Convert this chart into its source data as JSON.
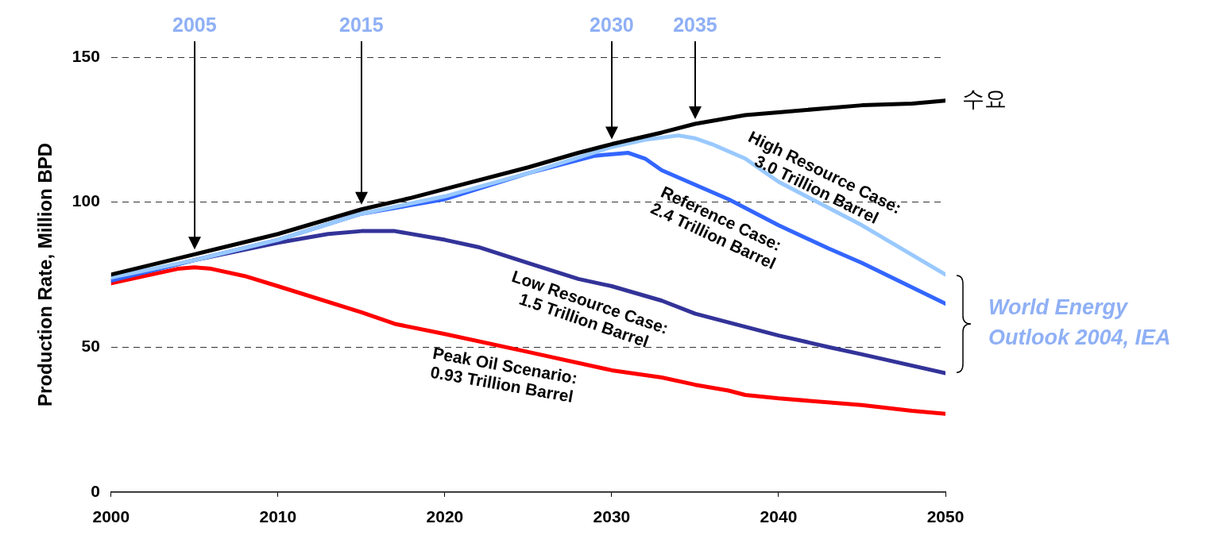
{
  "chart_data": {
    "type": "line",
    "ylabel": "Production Rate, Million BPD",
    "xlim": [
      2000,
      2050
    ],
    "xticks": [
      2000,
      2010,
      2020,
      2030,
      2040,
      2050
    ],
    "ylim": [
      0,
      150
    ],
    "yticks": [
      0,
      50,
      100,
      150
    ],
    "grid": "y",
    "legend": false,
    "marker": "none",
    "line_style": "solid",
    "series": [
      {
        "name": "수요",
        "color": "#000000",
        "x": [
          2000,
          2005,
          2010,
          2015,
          2018,
          2020,
          2025,
          2028,
          2030,
          2033,
          2035,
          2038,
          2040,
          2045,
          2048,
          2050
        ],
        "values": [
          75,
          82,
          89,
          97.5,
          101.5,
          104.5,
          112,
          117,
          120,
          124,
          127,
          130,
          131,
          133.4,
          134,
          135
        ]
      },
      {
        "name": "High Resource Case:\n3.0 Trillion Barrel",
        "color": "#99c9ff",
        "x": [
          2000,
          2005,
          2010,
          2015,
          2020,
          2025,
          2030,
          2032,
          2034,
          2035,
          2036,
          2038,
          2040,
          2045,
          2050
        ],
        "values": [
          74,
          80,
          87,
          96,
          102,
          110,
          119,
          121.5,
          123,
          122,
          120,
          115,
          107,
          92,
          75
        ]
      },
      {
        "name": "Reference Case:\n2.4 Trillion Barrel",
        "color": "#3366ff",
        "x": [
          2000,
          2005,
          2010,
          2015,
          2020,
          2025,
          2029,
          2031,
          2032,
          2033,
          2035,
          2037,
          2040,
          2043,
          2045,
          2050
        ],
        "values": [
          73,
          80,
          87,
          96,
          101,
          110,
          116,
          117,
          115,
          111,
          106,
          101,
          92,
          84,
          79,
          65
        ]
      },
      {
        "name": "Low Resource Case:\n1.5 Trillion Barrel",
        "color": "#333399",
        "x": [
          2000,
          2005,
          2010,
          2013,
          2015,
          2017,
          2020,
          2022,
          2025,
          2028,
          2030,
          2033,
          2035,
          2038,
          2040,
          2043,
          2045,
          2050
        ],
        "values": [
          73,
          80,
          86,
          89,
          90,
          90,
          87,
          84.5,
          79,
          73.5,
          71,
          66,
          61.5,
          57,
          54,
          50,
          47.5,
          41
        ]
      },
      {
        "name": "Peak Oil Scenario:\n0.93 Trillion Barrel",
        "color": "#ff0000",
        "x": [
          2000,
          2004,
          2005,
          2006,
          2008,
          2010,
          2015,
          2017,
          2020,
          2025,
          2030,
          2033,
          2035,
          2037,
          2038,
          2040,
          2045,
          2048,
          2050
        ],
        "values": [
          72,
          77,
          77.5,
          77,
          74.5,
          71,
          62,
          58,
          54.5,
          48.3,
          42,
          39.5,
          37,
          35,
          33.5,
          32.3,
          30,
          28,
          27
        ]
      }
    ],
    "annotations": [
      {
        "text": "2005",
        "x": 2005
      },
      {
        "text": "2015",
        "x": 2015
      },
      {
        "text": "2030",
        "x": 2030
      },
      {
        "text": "2035",
        "x": 2035
      },
      "World Energy\nOutlook 2004, IEA"
    ]
  }
}
